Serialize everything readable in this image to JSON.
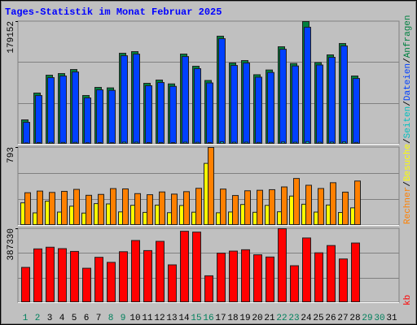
{
  "title": "Tages-Statistik im Monat Februar 2025",
  "legend_separator": "/",
  "chart_data": [
    {
      "type": "bar",
      "ylim": [
        0,
        179152
      ],
      "yticks": [
        179152
      ],
      "grid": true,
      "series": [
        {
          "name": "Anfragen",
          "color": "#008040",
          "values": [
            35580,
            74718,
            100810,
            103182,
            109112,
            71160,
            83020,
            82300,
            132832,
            135204,
            88950,
            93694,
            88100,
            131646,
            113856,
            93100,
            157738,
            118600,
            122158,
            101500,
            108400,
            142320,
            117900,
            179152,
            119300,
            130460,
            147064,
            99624,
            null,
            null,
            null
          ]
        },
        {
          "name": "Dateien",
          "color": "#0040ff",
          "values": [
            32000,
            71100,
            97200,
            99600,
            105500,
            67600,
            79400,
            78700,
            129200,
            131600,
            85400,
            90100,
            84500,
            128000,
            110300,
            89500,
            154100,
            115000,
            118600,
            97900,
            104800,
            138700,
            114300,
            170800,
            115700,
            126900,
            143500,
            96000,
            null,
            null,
            null
          ]
        },
        {
          "name": "Seiten",
          "color": "#00c0c0",
          "values": [
            1900,
            2400,
            2800,
            2600,
            2700,
            2100,
            2300,
            2200,
            3100,
            3000,
            2400,
            2500,
            2300,
            3000,
            2800,
            2400,
            3500,
            2900,
            3000,
            2600,
            2700,
            3300,
            2900,
            3900,
            2900,
            3100,
            3400,
            2600,
            null,
            null,
            null
          ]
        }
      ]
    },
    {
      "type": "bar",
      "ylim": [
        0,
        793
      ],
      "yticks": [
        793
      ],
      "grid": true,
      "series": [
        {
          "name": "Besuche",
          "color": "#ffff00",
          "values": [
            230,
            128,
            247,
            136,
            196,
            126,
            222,
            219,
            138,
            205,
            133,
            207,
            130,
            203,
            135,
            631,
            129,
            137,
            213,
            134,
            204,
            139,
            299,
            216,
            136,
            208,
            132,
            179,
            null,
            null,
            null
          ]
        },
        {
          "name": "Rechner",
          "color": "#ff8000",
          "values": [
            333,
            350,
            336,
            347,
            367,
            307,
            316,
            375,
            372,
            324,
            313,
            341,
            319,
            344,
            378,
            793,
            370,
            305,
            353,
            358,
            364,
            392,
            478,
            409,
            376,
            435,
            339,
            452,
            null,
            null,
            null
          ]
        }
      ]
    },
    {
      "type": "bar",
      "ylim": [
        0,
        387330
      ],
      "yticks": [
        387330
      ],
      "grid": true,
      "categories": [
        "1",
        "2",
        "3",
        "4",
        "5",
        "6",
        "7",
        "8",
        "9",
        "10",
        "11",
        "12",
        "13",
        "14",
        "15",
        "16",
        "17",
        "18",
        "19",
        "20",
        "21",
        "22",
        "23",
        "24",
        "25",
        "26",
        "27",
        "28",
        "29",
        "30",
        "31"
      ],
      "label_colors": [
        "#00805c",
        "#00805c",
        "#000000",
        "#000000",
        "#000000",
        "#000000",
        "#000000",
        "#00805c",
        "#00805c",
        "#000000",
        "#000000",
        "#000000",
        "#000000",
        "#000000",
        "#00805c",
        "#00805c",
        "#000000",
        "#000000",
        "#000000",
        "#000000",
        "#000000",
        "#00805c",
        "#00805c",
        "#000000",
        "#000000",
        "#000000",
        "#000000",
        "#000000",
        "#00805c",
        "#00805c",
        "#000000"
      ],
      "series": [
        {
          "name": "kb",
          "color": "#ff0000",
          "values": [
            184800,
            281700,
            290500,
            283100,
            268500,
            180400,
            237700,
            211200,
            266900,
            325700,
            272900,
            321300,
            198000,
            374100,
            369700,
            140800,
            259700,
            270100,
            277300,
            250900,
            239200,
            387330,
            193600,
            338900,
            261200,
            299300,
            228900,
            312500,
            null,
            null,
            null
          ]
        }
      ]
    }
  ]
}
